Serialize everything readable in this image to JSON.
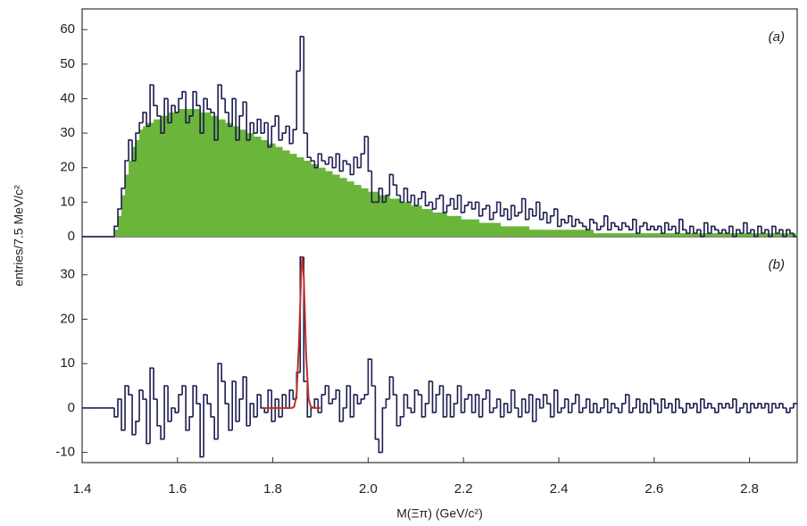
{
  "chart_data": [
    {
      "type": "histogram",
      "annotation": "(a)",
      "ylabel": "entries/7.5 MeV/c²",
      "xlim": [
        1.4,
        2.9
      ],
      "ylim": [
        0,
        66
      ],
      "yticks": [
        0,
        10,
        20,
        30,
        40,
        50,
        60
      ],
      "bins": [
        1.4,
        1.4075,
        1.415,
        1.4225,
        1.43,
        1.4375,
        1.445,
        1.4525,
        1.46,
        1.4675,
        1.475,
        1.4825,
        1.49,
        1.4975,
        1.505,
        1.5125,
        1.52,
        1.5275,
        1.535,
        1.5425,
        1.55,
        1.5575,
        1.565,
        1.5725,
        1.58,
        1.5875,
        1.595,
        1.6025,
        1.61,
        1.6175,
        1.625,
        1.6325,
        1.64,
        1.6475,
        1.655,
        1.6625,
        1.67,
        1.6775,
        1.685,
        1.6925,
        1.7,
        1.7075,
        1.715,
        1.7225,
        1.73,
        1.7375,
        1.745,
        1.7525,
        1.76,
        1.7675,
        1.775,
        1.7825,
        1.79,
        1.7975,
        1.805,
        1.8125,
        1.82,
        1.8275,
        1.835,
        1.8425,
        1.85,
        1.8575,
        1.865,
        1.8725,
        1.88,
        1.8875,
        1.895,
        1.9025,
        1.91,
        1.9175,
        1.925,
        1.9325,
        1.94,
        1.9475,
        1.955,
        1.9625,
        1.97,
        1.9775,
        1.985,
        1.9925,
        2.0,
        2.0075,
        2.015,
        2.0225,
        2.03,
        2.0375,
        2.045,
        2.0525,
        2.06,
        2.0675,
        2.075,
        2.0825,
        2.09,
        2.0975,
        2.105,
        2.1125,
        2.12,
        2.1275,
        2.135,
        2.1425,
        2.15,
        2.1575,
        2.165,
        2.1725,
        2.18,
        2.1875,
        2.195,
        2.2025,
        2.21,
        2.2175,
        2.225,
        2.2325,
        2.24,
        2.2475,
        2.255,
        2.2625,
        2.27,
        2.2775,
        2.285,
        2.2925,
        2.3,
        2.3075,
        2.315,
        2.3225,
        2.33,
        2.3375,
        2.345,
        2.3525,
        2.36,
        2.3675,
        2.375,
        2.3825,
        2.39,
        2.3975,
        2.405,
        2.4125,
        2.42,
        2.4275,
        2.435,
        2.4425,
        2.45,
        2.4575,
        2.465,
        2.4725,
        2.48,
        2.4875,
        2.495,
        2.5025,
        2.51,
        2.5175,
        2.525,
        2.5325,
        2.54,
        2.5475,
        2.555,
        2.5625,
        2.57,
        2.5775,
        2.585,
        2.5925,
        2.6,
        2.6075,
        2.615,
        2.6225,
        2.63,
        2.6375,
        2.645,
        2.6525,
        2.66,
        2.6675,
        2.675,
        2.6825,
        2.69,
        2.6975,
        2.705,
        2.7125,
        2.72,
        2.7275,
        2.735,
        2.7425,
        2.75,
        2.7575,
        2.765,
        2.7725,
        2.78,
        2.7875,
        2.795,
        2.8025,
        2.81,
        2.8175,
        2.825,
        2.8325,
        2.84,
        2.8475,
        2.855,
        2.8625,
        2.87,
        2.8775,
        2.885,
        2.8925,
        2.9
      ],
      "series": [
        {
          "style": "filled",
          "color": "#6ab53a",
          "values": [
            0,
            0,
            0,
            0,
            0,
            0,
            0,
            0,
            0,
            2,
            6,
            12,
            18,
            22,
            26,
            28,
            31,
            32,
            33,
            33,
            34,
            34,
            35,
            35,
            36,
            36,
            36,
            37,
            37,
            37,
            37,
            37,
            37,
            36,
            36,
            36,
            35,
            35,
            34,
            34,
            33,
            33,
            32,
            32,
            31,
            31,
            30,
            30,
            29,
            29,
            28,
            28,
            27,
            27,
            26,
            26,
            25,
            25,
            24,
            24,
            23,
            23,
            22,
            22,
            21,
            21,
            20,
            20,
            19,
            19,
            18,
            18,
            17,
            17,
            16,
            16,
            15,
            15,
            14,
            14,
            13,
            13,
            13,
            12,
            12,
            12,
            11,
            11,
            11,
            10,
            10,
            10,
            9,
            9,
            9,
            8,
            8,
            8,
            7,
            7,
            7,
            7,
            6,
            6,
            6,
            6,
            5,
            5,
            5,
            5,
            5,
            4,
            4,
            4,
            4,
            4,
            4,
            3,
            3,
            3,
            3,
            3,
            3,
            3,
            3,
            2,
            2,
            2,
            2,
            2,
            2,
            2,
            2,
            2,
            2,
            2,
            2,
            2,
            2,
            2,
            2,
            2,
            2,
            1,
            1,
            1,
            1,
            1,
            1,
            1,
            1,
            1,
            1,
            1,
            1,
            1,
            1,
            1,
            1,
            1,
            1,
            1,
            1,
            1,
            1,
            1,
            1,
            1,
            1,
            1,
            1,
            1,
            1,
            1,
            1,
            1,
            1,
            1,
            1,
            1,
            1,
            1,
            1,
            1,
            1,
            1,
            1,
            1,
            1,
            1,
            1,
            1,
            1,
            1,
            1,
            1,
            1,
            1,
            1,
            1
          ]
        },
        {
          "style": "step",
          "color": "#1c1c50",
          "values": [
            0,
            0,
            0,
            0,
            0,
            0,
            0,
            0,
            0,
            3,
            8,
            14,
            22,
            28,
            22,
            30,
            33,
            36,
            32,
            44,
            38,
            35,
            30,
            40,
            33,
            38,
            36,
            40,
            42,
            33,
            35,
            42,
            38,
            30,
            40,
            37,
            36,
            28,
            44,
            40,
            36,
            32,
            40,
            28,
            35,
            39,
            28,
            33,
            30,
            34,
            30,
            33,
            26,
            32,
            35,
            28,
            30,
            32,
            27,
            31,
            48,
            58,
            30,
            23,
            22,
            20,
            24,
            22,
            21,
            23,
            20,
            24,
            19,
            22,
            21,
            18,
            23,
            20,
            24,
            29,
            19,
            10,
            10,
            14,
            10,
            12,
            18,
            15,
            12,
            10,
            14,
            10,
            12,
            9,
            11,
            13,
            9,
            10,
            8,
            11,
            12,
            7,
            9,
            11,
            8,
            12,
            7,
            9,
            10,
            8,
            10,
            6,
            8,
            9,
            5,
            7,
            10,
            6,
            8,
            5,
            9,
            6,
            7,
            11,
            5,
            8,
            6,
            10,
            5,
            7,
            4,
            6,
            8,
            3,
            5,
            4,
            6,
            3,
            5,
            4,
            3,
            2,
            5,
            4,
            2,
            3,
            6,
            2,
            4,
            3,
            2,
            4,
            3,
            2,
            5,
            1,
            3,
            4,
            2,
            3,
            2,
            3,
            1,
            4,
            2,
            3,
            1,
            5,
            2,
            1,
            3,
            1,
            2,
            0,
            4,
            1,
            3,
            2,
            1,
            2,
            1,
            3,
            0,
            2,
            1,
            4,
            1,
            2,
            0,
            3,
            1,
            2,
            0,
            3,
            1,
            2,
            0,
            2,
            1,
            0
          ]
        }
      ]
    },
    {
      "type": "histogram",
      "annotation": "(b)",
      "xlabel": "M(Ξπ) (GeV/c²)",
      "xlim": [
        1.4,
        2.9
      ],
      "ylim": [
        -12.3,
        38.6
      ],
      "yticks": [
        -10,
        0,
        10,
        20,
        30
      ],
      "xticks": [
        1.4,
        1.6,
        1.8,
        {
          "value": 2,
          "label": "2.0"
        },
        2.2,
        2.4,
        2.6,
        2.8
      ],
      "bins": [
        1.4,
        1.4075,
        1.415,
        1.4225,
        1.43,
        1.4375,
        1.445,
        1.4525,
        1.46,
        1.4675,
        1.475,
        1.4825,
        1.49,
        1.4975,
        1.505,
        1.5125,
        1.52,
        1.5275,
        1.535,
        1.5425,
        1.55,
        1.5575,
        1.565,
        1.5725,
        1.58,
        1.5875,
        1.595,
        1.6025,
        1.61,
        1.6175,
        1.625,
        1.6325,
        1.64,
        1.6475,
        1.655,
        1.6625,
        1.67,
        1.6775,
        1.685,
        1.6925,
        1.7,
        1.7075,
        1.715,
        1.7225,
        1.73,
        1.7375,
        1.745,
        1.7525,
        1.76,
        1.7675,
        1.775,
        1.7825,
        1.79,
        1.7975,
        1.805,
        1.8125,
        1.82,
        1.8275,
        1.835,
        1.8425,
        1.85,
        1.8575,
        1.865,
        1.8725,
        1.88,
        1.8875,
        1.895,
        1.9025,
        1.91,
        1.9175,
        1.925,
        1.9325,
        1.94,
        1.9475,
        1.955,
        1.9625,
        1.97,
        1.9775,
        1.985,
        1.9925,
        2.0,
        2.0075,
        2.015,
        2.0225,
        2.03,
        2.0375,
        2.045,
        2.0525,
        2.06,
        2.0675,
        2.075,
        2.0825,
        2.09,
        2.0975,
        2.105,
        2.1125,
        2.12,
        2.1275,
        2.135,
        2.1425,
        2.15,
        2.1575,
        2.165,
        2.1725,
        2.18,
        2.1875,
        2.195,
        2.2025,
        2.21,
        2.2175,
        2.225,
        2.2325,
        2.24,
        2.2475,
        2.255,
        2.2625,
        2.27,
        2.2775,
        2.285,
        2.2925,
        2.3,
        2.3075,
        2.315,
        2.3225,
        2.33,
        2.3375,
        2.345,
        2.3525,
        2.36,
        2.3675,
        2.375,
        2.3825,
        2.39,
        2.3975,
        2.405,
        2.4125,
        2.42,
        2.4275,
        2.435,
        2.4425,
        2.45,
        2.4575,
        2.465,
        2.4725,
        2.48,
        2.4875,
        2.495,
        2.5025,
        2.51,
        2.5175,
        2.525,
        2.5325,
        2.54,
        2.5475,
        2.555,
        2.5625,
        2.57,
        2.5775,
        2.585,
        2.5925,
        2.6,
        2.6075,
        2.615,
        2.6225,
        2.63,
        2.6375,
        2.645,
        2.6525,
        2.66,
        2.6675,
        2.675,
        2.6825,
        2.69,
        2.6975,
        2.705,
        2.7125,
        2.72,
        2.7275,
        2.735,
        2.7425,
        2.75,
        2.7575,
        2.765,
        2.7725,
        2.78,
        2.7875,
        2.795,
        2.8025,
        2.81,
        2.8175,
        2.825,
        2.8325,
        2.84,
        2.8475,
        2.855,
        2.8625,
        2.87,
        2.8775,
        2.885,
        2.8925,
        2.9
      ],
      "series": [
        {
          "style": "step",
          "color": "#1c1c50",
          "values": [
            0,
            0,
            0,
            0,
            0,
            0,
            0,
            0,
            0,
            -2,
            2,
            -5,
            5,
            3,
            -6,
            -3,
            4,
            2,
            -8,
            9,
            2,
            -4,
            -7,
            5,
            -3,
            0,
            -1,
            3,
            5,
            -5,
            -2,
            5,
            1,
            -11,
            3,
            1,
            -2,
            -7,
            10,
            6,
            1,
            -5,
            6,
            -3,
            2,
            7,
            -4,
            1,
            -2,
            3,
            0,
            -1,
            4,
            -3,
            2,
            -2,
            3,
            0,
            4,
            2,
            8,
            34,
            6,
            -2,
            0,
            2,
            -1,
            3,
            5,
            1,
            2,
            4,
            -3,
            0,
            5,
            -2,
            3,
            1,
            2,
            3,
            11,
            5,
            -7,
            -10,
            0,
            2,
            7,
            3,
            -4,
            -2,
            3,
            0,
            -1,
            4,
            3,
            -2,
            1,
            6,
            -1,
            3,
            5,
            -2,
            3,
            -2,
            1,
            5,
            -1,
            2,
            3,
            -1,
            3,
            -2,
            2,
            4,
            -1,
            0,
            2,
            -2,
            1,
            -1,
            4,
            0,
            -2,
            2,
            -1,
            3,
            -3,
            2,
            0,
            3,
            1,
            -2,
            4,
            -1,
            0,
            2,
            -1,
            1,
            3,
            -1,
            0,
            2,
            -1,
            1,
            -1,
            0,
            2,
            -1,
            1,
            0,
            -1,
            1,
            3,
            -1,
            0,
            2,
            -1,
            1,
            -1,
            2,
            1,
            -1,
            2,
            0,
            1,
            -1,
            2,
            0,
            -1,
            1,
            0,
            1,
            -1,
            2,
            0,
            1,
            0,
            -1,
            1,
            0,
            1,
            0,
            2,
            -1,
            0,
            1,
            -1,
            1,
            0,
            1,
            0,
            1,
            -1,
            1,
            0,
            1,
            0,
            -1,
            0,
            1
          ]
        }
      ],
      "fit": {
        "color": "#c0302a",
        "x": [
          1.78,
          1.8,
          1.82,
          1.83,
          1.84,
          1.845,
          1.85,
          1.855,
          1.86,
          1.862,
          1.865,
          1.87,
          1.875,
          1.88,
          1.89,
          1.9
        ],
        "values": [
          0,
          0,
          0,
          0,
          0,
          0.3,
          3.2,
          15.1,
          31.8,
          34,
          29.3,
          11.8,
          2.1,
          0.2,
          0,
          0
        ]
      }
    }
  ]
}
